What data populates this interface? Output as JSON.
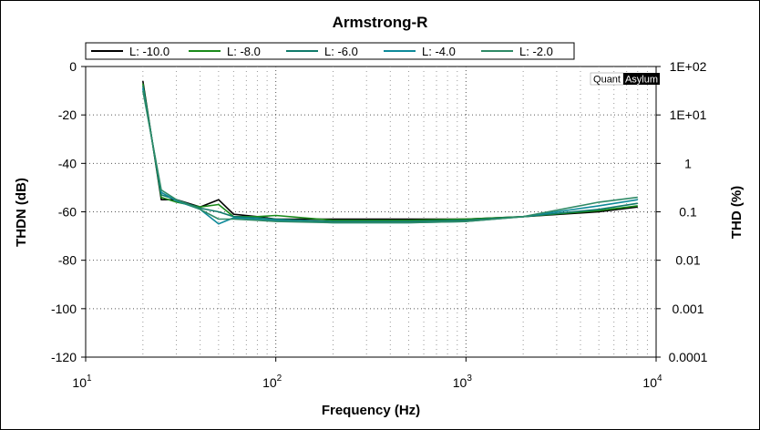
{
  "chart_data": {
    "type": "line",
    "title": "Armstrong-R",
    "xlabel": "Frequency (Hz)",
    "ylabel": "THDN (dB)",
    "y2label": "THD (%)",
    "x_scale": "log",
    "xlim": [
      10,
      10000
    ],
    "ylim": [
      -120,
      0
    ],
    "y2lim": [
      0.0001,
      100
    ],
    "x_ticks": [
      {
        "base": "10",
        "exp": "1"
      },
      {
        "base": "10",
        "exp": "2"
      },
      {
        "base": "10",
        "exp": "3"
      },
      {
        "base": "10",
        "exp": "4"
      }
    ],
    "y_ticks": [
      "0",
      "-20",
      "-40",
      "-60",
      "-80",
      "-100",
      "-120"
    ],
    "y2_ticks": [
      "1E+02",
      "1E+01",
      "1",
      "0.1",
      "0.01",
      "0.001",
      "0.0001"
    ],
    "grid": true,
    "legend_position": "top",
    "watermark": {
      "part1": "Quant",
      "part2": "Asylum"
    },
    "series": [
      {
        "name": "L: -10.0",
        "color": "#000000",
        "points": [
          [
            20,
            -6
          ],
          [
            25,
            -55
          ],
          [
            30,
            -55
          ],
          [
            40,
            -58
          ],
          [
            50,
            -55
          ],
          [
            60,
            -61
          ],
          [
            80,
            -62
          ],
          [
            100,
            -63
          ],
          [
            200,
            -63
          ],
          [
            500,
            -63
          ],
          [
            1000,
            -63
          ],
          [
            2000,
            -62
          ],
          [
            5000,
            -60
          ],
          [
            8000,
            -58
          ]
        ]
      },
      {
        "name": "L: -8.0",
        "color": "#1a8a1a",
        "points": [
          [
            20,
            -7
          ],
          [
            25,
            -54
          ],
          [
            30,
            -56
          ],
          [
            40,
            -58
          ],
          [
            50,
            -57
          ],
          [
            60,
            -62
          ],
          [
            80,
            -62
          ],
          [
            100,
            -61.5
          ],
          [
            200,
            -63.5
          ],
          [
            500,
            -63.5
          ],
          [
            1000,
            -63
          ],
          [
            2000,
            -62
          ],
          [
            5000,
            -59.5
          ],
          [
            8000,
            -57.5
          ]
        ]
      },
      {
        "name": "L: -6.0",
        "color": "#107a6a",
        "points": [
          [
            20,
            -8
          ],
          [
            25,
            -53
          ],
          [
            30,
            -55
          ],
          [
            40,
            -58.5
          ],
          [
            50,
            -60
          ],
          [
            60,
            -62
          ],
          [
            80,
            -62.5
          ],
          [
            100,
            -63
          ],
          [
            200,
            -64
          ],
          [
            500,
            -64
          ],
          [
            1000,
            -63.5
          ],
          [
            2000,
            -62
          ],
          [
            5000,
            -59
          ],
          [
            8000,
            -56.5
          ]
        ]
      },
      {
        "name": "L: -4.0",
        "color": "#0e8a9a",
        "points": [
          [
            20,
            -9
          ],
          [
            25,
            -52
          ],
          [
            30,
            -55.5
          ],
          [
            40,
            -59
          ],
          [
            50,
            -65
          ],
          [
            60,
            -62.5
          ],
          [
            80,
            -63
          ],
          [
            100,
            -63.5
          ],
          [
            200,
            -64.5
          ],
          [
            500,
            -64.5
          ],
          [
            1000,
            -64
          ],
          [
            2000,
            -62
          ],
          [
            5000,
            -57.5
          ],
          [
            8000,
            -55
          ]
        ]
      },
      {
        "name": "L: -2.0",
        "color": "#2e8a66",
        "points": [
          [
            20,
            -10
          ],
          [
            25,
            -51
          ],
          [
            30,
            -55
          ],
          [
            40,
            -59
          ],
          [
            50,
            -63
          ],
          [
            60,
            -63
          ],
          [
            80,
            -63.5
          ],
          [
            100,
            -64
          ],
          [
            200,
            -64.5
          ],
          [
            500,
            -64.5
          ],
          [
            1000,
            -64
          ],
          [
            2000,
            -62
          ],
          [
            5000,
            -56
          ],
          [
            8000,
            -54
          ]
        ]
      }
    ]
  }
}
